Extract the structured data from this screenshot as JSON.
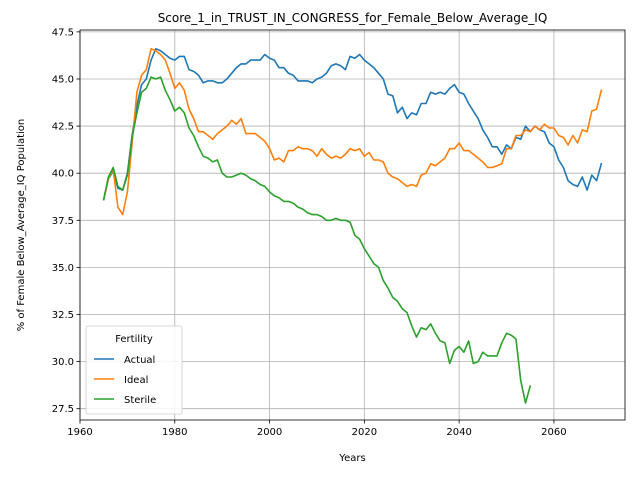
{
  "chart_data": {
    "type": "line",
    "title": "Score_1_in_TRUST_IN_CONGRESS_for_Female_Below_Average_IQ",
    "xlabel": "Years",
    "ylabel": "% of Female Below_Average_IQ Population",
    "xlim": [
      1960,
      2075
    ],
    "ylim": [
      26.9,
      47.6
    ],
    "xticks": [
      1960,
      1980,
      2000,
      2020,
      2040,
      2060
    ],
    "yticks": [
      27.5,
      30.0,
      32.5,
      35.0,
      37.5,
      40.0,
      42.5,
      45.0,
      47.5
    ],
    "grid": true,
    "legend": {
      "title": "Fertility",
      "placement": "lower-left"
    },
    "series": [
      {
        "name": "Actual",
        "color": "#1f77b4",
        "points": [
          [
            1965,
            38.6
          ],
          [
            1966,
            39.7
          ],
          [
            1967,
            40.1
          ],
          [
            1968,
            39.2
          ],
          [
            1969,
            39.1
          ],
          [
            1970,
            40.0
          ],
          [
            1971,
            42.0
          ],
          [
            1972,
            43.6
          ],
          [
            1973,
            44.7
          ],
          [
            1974,
            45.0
          ],
          [
            1975,
            46.0
          ],
          [
            1976,
            46.6
          ],
          [
            1977,
            46.5
          ],
          [
            1978,
            46.3
          ],
          [
            1979,
            46.1
          ],
          [
            1980,
            46.0
          ],
          [
            1981,
            46.2
          ],
          [
            1982,
            46.2
          ],
          [
            1983,
            45.5
          ],
          [
            1984,
            45.4
          ],
          [
            1985,
            45.2
          ],
          [
            1986,
            44.8
          ],
          [
            1987,
            44.9
          ],
          [
            1988,
            44.9
          ],
          [
            1989,
            44.8
          ],
          [
            1990,
            44.8
          ],
          [
            1991,
            45.0
          ],
          [
            1992,
            45.3
          ],
          [
            1993,
            45.6
          ],
          [
            1994,
            45.8
          ],
          [
            1995,
            45.8
          ],
          [
            1996,
            46.0
          ],
          [
            1997,
            46.0
          ],
          [
            1998,
            46.0
          ],
          [
            1999,
            46.3
          ],
          [
            2000,
            46.1
          ],
          [
            2001,
            46.0
          ],
          [
            2002,
            45.6
          ],
          [
            2003,
            45.6
          ],
          [
            2004,
            45.3
          ],
          [
            2005,
            45.2
          ],
          [
            2006,
            44.9
          ],
          [
            2007,
            44.9
          ],
          [
            2008,
            44.9
          ],
          [
            2009,
            44.8
          ],
          [
            2010,
            45.0
          ],
          [
            2011,
            45.1
          ],
          [
            2012,
            45.3
          ],
          [
            2013,
            45.7
          ],
          [
            2014,
            45.8
          ],
          [
            2015,
            45.7
          ],
          [
            2016,
            45.5
          ],
          [
            2017,
            46.2
          ],
          [
            2018,
            46.1
          ],
          [
            2019,
            46.3
          ],
          [
            2020,
            46.0
          ],
          [
            2021,
            45.8
          ],
          [
            2022,
            45.6
          ],
          [
            2023,
            45.3
          ],
          [
            2024,
            45.0
          ],
          [
            2025,
            44.2
          ],
          [
            2026,
            44.1
          ],
          [
            2027,
            43.2
          ],
          [
            2028,
            43.5
          ],
          [
            2029,
            42.9
          ],
          [
            2030,
            43.2
          ],
          [
            2031,
            43.1
          ],
          [
            2032,
            43.7
          ],
          [
            2033,
            43.7
          ],
          [
            2034,
            44.3
          ],
          [
            2035,
            44.2
          ],
          [
            2036,
            44.3
          ],
          [
            2037,
            44.2
          ],
          [
            2038,
            44.5
          ],
          [
            2039,
            44.7
          ],
          [
            2040,
            44.3
          ],
          [
            2041,
            44.2
          ],
          [
            2042,
            43.7
          ],
          [
            2043,
            43.3
          ],
          [
            2044,
            42.9
          ],
          [
            2045,
            42.3
          ],
          [
            2046,
            41.9
          ],
          [
            2047,
            41.4
          ],
          [
            2048,
            41.4
          ],
          [
            2049,
            41.0
          ],
          [
            2050,
            41.5
          ],
          [
            2051,
            41.3
          ],
          [
            2052,
            41.9
          ],
          [
            2053,
            41.8
          ],
          [
            2054,
            42.5
          ],
          [
            2055,
            42.2
          ],
          [
            2056,
            42.5
          ],
          [
            2057,
            42.3
          ],
          [
            2058,
            42.2
          ],
          [
            2059,
            41.6
          ],
          [
            2060,
            41.4
          ],
          [
            2061,
            40.7
          ],
          [
            2062,
            40.3
          ],
          [
            2063,
            39.6
          ],
          [
            2064,
            39.4
          ],
          [
            2065,
            39.3
          ],
          [
            2066,
            39.8
          ],
          [
            2067,
            39.1
          ],
          [
            2068,
            39.9
          ],
          [
            2069,
            39.6
          ],
          [
            2070,
            40.5
          ]
        ]
      },
      {
        "name": "Ideal",
        "color": "#ff7f0e",
        "points": [
          [
            1965,
            38.6
          ],
          [
            1966,
            39.7
          ],
          [
            1967,
            40.2
          ],
          [
            1968,
            38.2
          ],
          [
            1969,
            37.8
          ],
          [
            1970,
            39.0
          ],
          [
            1971,
            41.6
          ],
          [
            1972,
            44.3
          ],
          [
            1973,
            45.2
          ],
          [
            1974,
            45.5
          ],
          [
            1975,
            46.6
          ],
          [
            1976,
            46.5
          ],
          [
            1977,
            46.3
          ],
          [
            1978,
            46.0
          ],
          [
            1979,
            45.3
          ],
          [
            1980,
            44.5
          ],
          [
            1981,
            44.8
          ],
          [
            1982,
            44.4
          ],
          [
            1983,
            43.4
          ],
          [
            1984,
            42.9
          ],
          [
            1985,
            42.2
          ],
          [
            1986,
            42.2
          ],
          [
            1987,
            42.0
          ],
          [
            1988,
            41.8
          ],
          [
            1989,
            42.1
          ],
          [
            1990,
            42.3
          ],
          [
            1991,
            42.5
          ],
          [
            1992,
            42.8
          ],
          [
            1993,
            42.6
          ],
          [
            1994,
            42.9
          ],
          [
            1995,
            42.1
          ],
          [
            1996,
            42.1
          ],
          [
            1997,
            42.1
          ],
          [
            1998,
            41.9
          ],
          [
            1999,
            41.7
          ],
          [
            2000,
            41.3
          ],
          [
            2001,
            40.7
          ],
          [
            2002,
            40.8
          ],
          [
            2003,
            40.6
          ],
          [
            2004,
            41.2
          ],
          [
            2005,
            41.2
          ],
          [
            2006,
            41.4
          ],
          [
            2007,
            41.3
          ],
          [
            2008,
            41.3
          ],
          [
            2009,
            41.2
          ],
          [
            2010,
            40.9
          ],
          [
            2011,
            41.3
          ],
          [
            2012,
            41.0
          ],
          [
            2013,
            40.8
          ],
          [
            2014,
            40.9
          ],
          [
            2015,
            40.8
          ],
          [
            2016,
            41.0
          ],
          [
            2017,
            41.3
          ],
          [
            2018,
            41.2
          ],
          [
            2019,
            41.3
          ],
          [
            2020,
            40.9
          ],
          [
            2021,
            41.1
          ],
          [
            2022,
            40.7
          ],
          [
            2023,
            40.7
          ],
          [
            2024,
            40.6
          ],
          [
            2025,
            40.0
          ],
          [
            2026,
            39.8
          ],
          [
            2027,
            39.7
          ],
          [
            2028,
            39.5
          ],
          [
            2029,
            39.3
          ],
          [
            2030,
            39.4
          ],
          [
            2031,
            39.3
          ],
          [
            2032,
            39.9
          ],
          [
            2033,
            40.0
          ],
          [
            2034,
            40.5
          ],
          [
            2035,
            40.4
          ],
          [
            2036,
            40.6
          ],
          [
            2037,
            40.8
          ],
          [
            2038,
            41.3
          ],
          [
            2039,
            41.3
          ],
          [
            2040,
            41.6
          ],
          [
            2041,
            41.2
          ],
          [
            2042,
            41.2
          ],
          [
            2043,
            41.0
          ],
          [
            2044,
            40.8
          ],
          [
            2045,
            40.6
          ],
          [
            2046,
            40.3
          ],
          [
            2047,
            40.3
          ],
          [
            2048,
            40.4
          ],
          [
            2049,
            40.5
          ],
          [
            2050,
            41.3
          ],
          [
            2051,
            41.3
          ],
          [
            2052,
            42.0
          ],
          [
            2053,
            42.0
          ],
          [
            2054,
            42.3
          ],
          [
            2055,
            42.2
          ],
          [
            2056,
            42.5
          ],
          [
            2057,
            42.3
          ],
          [
            2058,
            42.6
          ],
          [
            2059,
            42.4
          ],
          [
            2060,
            42.4
          ],
          [
            2061,
            42.0
          ],
          [
            2062,
            41.9
          ],
          [
            2063,
            41.5
          ],
          [
            2064,
            42.0
          ],
          [
            2065,
            41.6
          ],
          [
            2066,
            42.3
          ],
          [
            2067,
            42.2
          ],
          [
            2068,
            43.3
          ],
          [
            2069,
            43.4
          ],
          [
            2070,
            44.4
          ]
        ]
      },
      {
        "name": "Sterile",
        "color": "#2ca02c",
        "points": [
          [
            1965,
            38.6
          ],
          [
            1966,
            39.8
          ],
          [
            1967,
            40.3
          ],
          [
            1968,
            39.3
          ],
          [
            1969,
            39.1
          ],
          [
            1970,
            39.9
          ],
          [
            1971,
            41.9
          ],
          [
            1972,
            43.2
          ],
          [
            1973,
            44.3
          ],
          [
            1974,
            44.5
          ],
          [
            1975,
            45.1
          ],
          [
            1976,
            45.0
          ],
          [
            1977,
            45.1
          ],
          [
            1978,
            44.4
          ],
          [
            1979,
            43.9
          ],
          [
            1980,
            43.3
          ],
          [
            1981,
            43.5
          ],
          [
            1982,
            43.2
          ],
          [
            1983,
            42.4
          ],
          [
            1984,
            42.0
          ],
          [
            1985,
            41.4
          ],
          [
            1986,
            40.9
          ],
          [
            1987,
            40.8
          ],
          [
            1988,
            40.6
          ],
          [
            1989,
            40.7
          ],
          [
            1990,
            40.0
          ],
          [
            1991,
            39.8
          ],
          [
            1992,
            39.8
          ],
          [
            1993,
            39.9
          ],
          [
            1994,
            40.0
          ],
          [
            1995,
            39.9
          ],
          [
            1996,
            39.7
          ],
          [
            1997,
            39.6
          ],
          [
            1998,
            39.4
          ],
          [
            1999,
            39.3
          ],
          [
            2000,
            39.0
          ],
          [
            2001,
            38.8
          ],
          [
            2002,
            38.7
          ],
          [
            2003,
            38.5
          ],
          [
            2004,
            38.5
          ],
          [
            2005,
            38.4
          ],
          [
            2006,
            38.2
          ],
          [
            2007,
            38.1
          ],
          [
            2008,
            37.9
          ],
          [
            2009,
            37.8
          ],
          [
            2010,
            37.8
          ],
          [
            2011,
            37.7
          ],
          [
            2012,
            37.5
          ],
          [
            2013,
            37.5
          ],
          [
            2014,
            37.6
          ],
          [
            2015,
            37.5
          ],
          [
            2016,
            37.5
          ],
          [
            2017,
            37.4
          ],
          [
            2018,
            36.7
          ],
          [
            2019,
            36.5
          ],
          [
            2020,
            36.0
          ],
          [
            2021,
            35.6
          ],
          [
            2022,
            35.2
          ],
          [
            2023,
            35.0
          ],
          [
            2024,
            34.3
          ],
          [
            2025,
            33.9
          ],
          [
            2026,
            33.4
          ],
          [
            2027,
            33.2
          ],
          [
            2028,
            32.8
          ],
          [
            2029,
            32.6
          ],
          [
            2030,
            31.9
          ],
          [
            2031,
            31.3
          ],
          [
            2032,
            31.8
          ],
          [
            2033,
            31.7
          ],
          [
            2034,
            32.0
          ],
          [
            2035,
            31.5
          ],
          [
            2036,
            31.1
          ],
          [
            2037,
            31.0
          ],
          [
            2038,
            29.9
          ],
          [
            2039,
            30.6
          ],
          [
            2040,
            30.8
          ],
          [
            2041,
            30.5
          ],
          [
            2042,
            31.1
          ],
          [
            2043,
            29.9
          ],
          [
            2044,
            30.0
          ],
          [
            2045,
            30.5
          ],
          [
            2046,
            30.3
          ],
          [
            2047,
            30.3
          ],
          [
            2048,
            30.3
          ],
          [
            2049,
            31.0
          ],
          [
            2050,
            31.5
          ],
          [
            2051,
            31.4
          ],
          [
            2052,
            31.2
          ],
          [
            2053,
            29.0
          ],
          [
            2054,
            27.8
          ],
          [
            2055,
            28.7
          ]
        ]
      }
    ]
  }
}
